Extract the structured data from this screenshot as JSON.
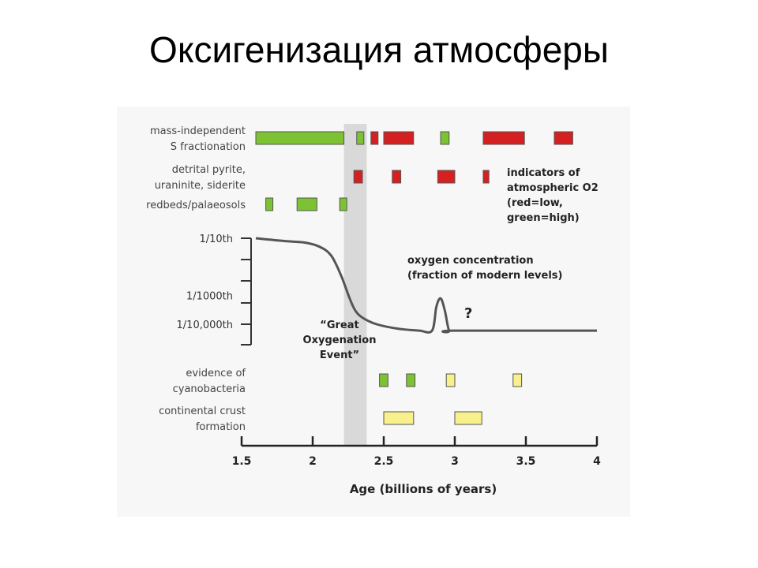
{
  "slide": {
    "title": "Оксигенизация атмосферы"
  },
  "chart_data": {
    "type": "timeline",
    "xlabel": "Age (billions of years)",
    "xlim": [
      1.5,
      4
    ],
    "xticks": [
      "1.5",
      "2",
      "2.5",
      "3",
      "3.5",
      "4"
    ],
    "colors": {
      "low": "#d42020",
      "high": "#7dc232",
      "pale": "#f7f08c",
      "curve": "#555555",
      "shade": "#d9d9d9"
    },
    "event_band": {
      "range": [
        2.22,
        2.38
      ],
      "label": [
        "“Great",
        "Oxygenation",
        "Event”"
      ]
    },
    "legend": [
      "indicators of",
      "atmospheric O2",
      "(red=low,",
      "green=high)"
    ],
    "indicator_rows": [
      {
        "label": [
          "mass-independent",
          "S fractionation"
        ],
        "bars": [
          {
            "start": 1.6,
            "end": 2.22,
            "indicator": "high"
          },
          {
            "start": 2.31,
            "end": 2.36,
            "indicator": "high"
          },
          {
            "start": 2.41,
            "end": 2.46,
            "indicator": "low"
          },
          {
            "start": 2.5,
            "end": 2.71,
            "indicator": "low"
          },
          {
            "start": 2.9,
            "end": 2.96,
            "indicator": "high"
          },
          {
            "start": 3.2,
            "end": 3.49,
            "indicator": "low"
          },
          {
            "start": 3.7,
            "end": 3.83,
            "indicator": "low"
          }
        ]
      },
      {
        "label": [
          "detrital pyrite,",
          "uraninite, siderite"
        ],
        "bars": [
          {
            "start": 2.29,
            "end": 2.35,
            "indicator": "low"
          },
          {
            "start": 2.56,
            "end": 2.62,
            "indicator": "low"
          },
          {
            "start": 2.88,
            "end": 3.0,
            "indicator": "low"
          },
          {
            "start": 3.2,
            "end": 3.24,
            "indicator": "low"
          }
        ]
      },
      {
        "label": [
          "redbeds/palaeosols"
        ],
        "bars": [
          {
            "start": 1.67,
            "end": 1.72,
            "indicator": "high"
          },
          {
            "start": 1.89,
            "end": 2.03,
            "indicator": "high"
          },
          {
            "start": 2.19,
            "end": 2.24,
            "indicator": "high"
          }
        ]
      }
    ],
    "oxygen_curve": {
      "title": [
        "oxygen concentration",
        "(fraction of modern levels)"
      ],
      "y_ticks": [
        "1/10th",
        "1/1000th",
        "1/10,000th"
      ],
      "y_tick_values": [
        0.1,
        0.001,
        0.0001
      ],
      "y_scale": "log",
      "spike_mark": "?",
      "x": [
        1.6,
        1.8,
        1.95,
        2.05,
        2.13,
        2.2,
        2.26,
        2.3,
        2.35,
        2.45,
        2.6,
        2.75,
        2.84,
        2.87,
        2.9,
        2.93,
        2.96,
        3.0,
        4.0
      ],
      "y": [
        0.1,
        0.08,
        0.07,
        0.05,
        0.025,
        0.005,
        0.0008,
        0.0003,
        0.00017,
        0.0001,
        7e-05,
        6e-05,
        6e-05,
        0.0004,
        0.0008,
        0.0003,
        6e-05,
        6e-05,
        6e-05
      ]
    },
    "evidence_rows": [
      {
        "label": [
          "evidence of",
          "cyanobacteria"
        ],
        "bars": [
          {
            "start": 2.47,
            "end": 2.53,
            "color": "green"
          },
          {
            "start": 2.66,
            "end": 2.72,
            "color": "green"
          },
          {
            "start": 2.94,
            "end": 3.0,
            "color": "pale"
          },
          {
            "start": 3.41,
            "end": 3.47,
            "color": "pale"
          }
        ]
      },
      {
        "label": [
          "continental crust",
          "formation"
        ],
        "bars": [
          {
            "start": 2.5,
            "end": 2.71,
            "color": "pale"
          },
          {
            "start": 3.0,
            "end": 3.19,
            "color": "pale"
          }
        ]
      }
    ]
  }
}
